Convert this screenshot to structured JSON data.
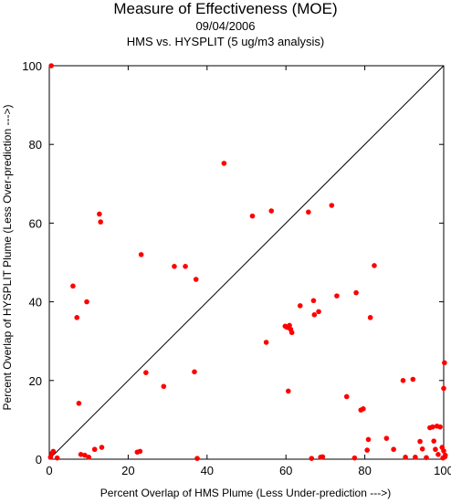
{
  "chart_data": {
    "type": "scatter",
    "title": "Measure of Effectiveness (MOE)",
    "subtitle_date": "09/04/2006",
    "subtitle_analysis": "HMS vs. HYSPLIT  (5 ug/m3 analysis)",
    "xlabel": "Percent Overlap of HMS Plume (Less Under-prediction --->)",
    "ylabel": "Percent Overlap of HYSPLIT Plume (Less Over-prediction --->)",
    "xlim": [
      0,
      100
    ],
    "ylim": [
      0,
      100
    ],
    "x_ticks": [
      0,
      20,
      40,
      60,
      80,
      100
    ],
    "y_ticks": [
      0,
      20,
      40,
      60,
      80,
      100
    ],
    "grid": false,
    "diagonal_reference_line": true,
    "point_color": "#ff0000",
    "points": [
      [
        0.5,
        100
      ],
      [
        0.3,
        0.5
      ],
      [
        0.7,
        1.5
      ],
      [
        1.0,
        2.0
      ],
      [
        2.0,
        0.3
      ],
      [
        6.0,
        44
      ],
      [
        7.0,
        36
      ],
      [
        7.5,
        14.2
      ],
      [
        8.0,
        1.2
      ],
      [
        9.0,
        1.0
      ],
      [
        9.5,
        40
      ],
      [
        10.0,
        0.5
      ],
      [
        11.5,
        2.5
      ],
      [
        12.7,
        62.3
      ],
      [
        13.0,
        60.3
      ],
      [
        13.3,
        3.0
      ],
      [
        22.3,
        1.8
      ],
      [
        23.0,
        2.0
      ],
      [
        23.3,
        52
      ],
      [
        24.5,
        22
      ],
      [
        29.0,
        18.5
      ],
      [
        31.7,
        49
      ],
      [
        34.5,
        49
      ],
      [
        36.8,
        22.2
      ],
      [
        37.2,
        45.7
      ],
      [
        37.5,
        0.2
      ],
      [
        44.3,
        75.2
      ],
      [
        51.5,
        61.8
      ],
      [
        55.0,
        29.7
      ],
      [
        56.3,
        63.1
      ],
      [
        59.8,
        33.8
      ],
      [
        60.3,
        33.5
      ],
      [
        60.6,
        17.3
      ],
      [
        60.9,
        34.0
      ],
      [
        61.2,
        33.0
      ],
      [
        61.5,
        32.2
      ],
      [
        63.6,
        39.0
      ],
      [
        65.7,
        62.8
      ],
      [
        66.5,
        0.2
      ],
      [
        67.0,
        40.3
      ],
      [
        67.2,
        36.7
      ],
      [
        68.3,
        37.5
      ],
      [
        68.8,
        0.5
      ],
      [
        69.3,
        0.6
      ],
      [
        71.6,
        64.5
      ],
      [
        72.9,
        41.5
      ],
      [
        75.4,
        15.9
      ],
      [
        77.4,
        0.3
      ],
      [
        77.8,
        42.3
      ],
      [
        79.0,
        12.5
      ],
      [
        79.6,
        12.8
      ],
      [
        80.6,
        2.3
      ],
      [
        80.9,
        5.0
      ],
      [
        81.4,
        36
      ],
      [
        82.4,
        49.2
      ],
      [
        85.5,
        5.3
      ],
      [
        87.3,
        2.5
      ],
      [
        89.7,
        20.0
      ],
      [
        90.3,
        0.5
      ],
      [
        92.2,
        20.3
      ],
      [
        92.8,
        0.5
      ],
      [
        94.0,
        4.5
      ],
      [
        94.6,
        2.6
      ],
      [
        95.6,
        0.4
      ],
      [
        96.5,
        8.0
      ],
      [
        97.2,
        8.2
      ],
      [
        97.5,
        4.6
      ],
      [
        97.9,
        2.5
      ],
      [
        98.3,
        8.4
      ],
      [
        98.6,
        1.2
      ],
      [
        99.1,
        8.2
      ],
      [
        99.6,
        3.0
      ],
      [
        99.8,
        0.3
      ],
      [
        100.0,
        2.1
      ],
      [
        100.0,
        18.0
      ],
      [
        100.2,
        24.5
      ],
      [
        100.3,
        0.6
      ],
      [
        100.4,
        1.0
      ]
    ]
  }
}
